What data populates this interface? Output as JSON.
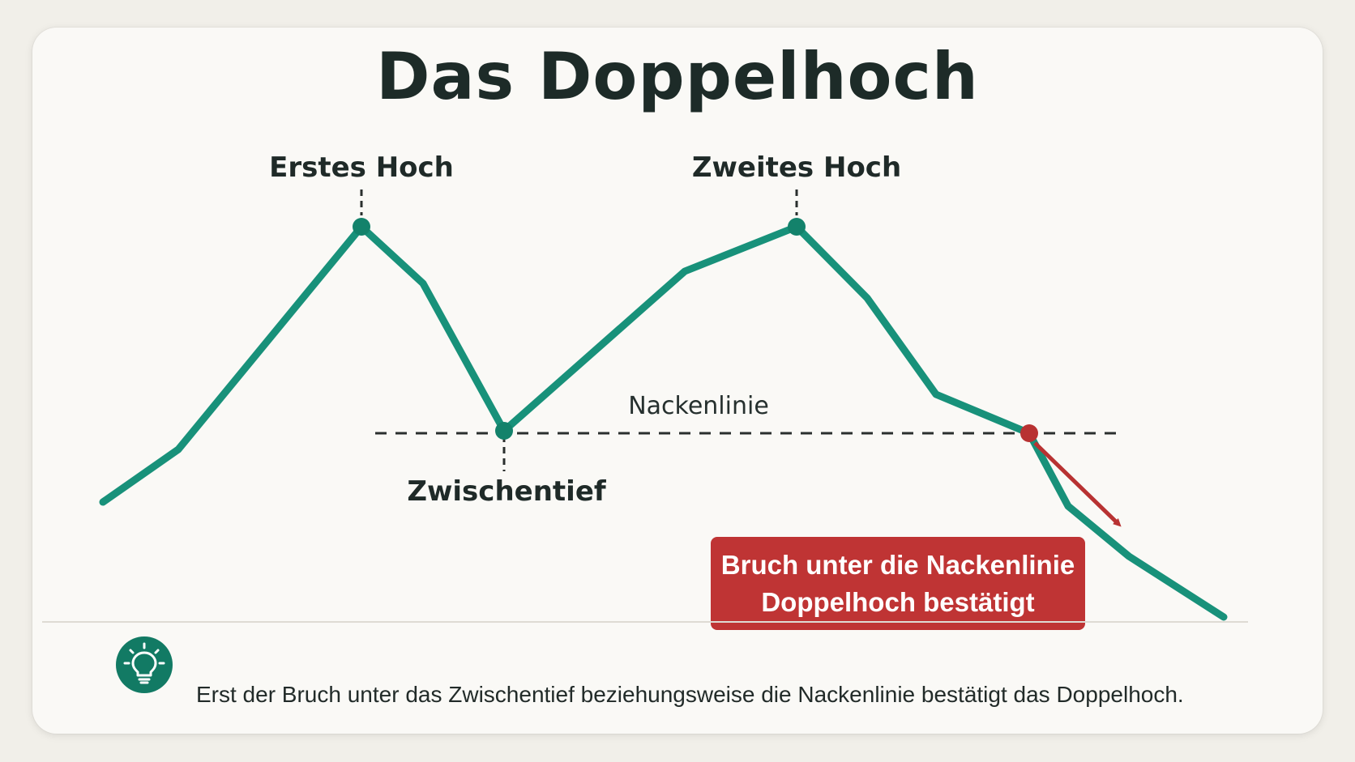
{
  "title": "Das Doppelhoch",
  "labels": {
    "first_high": "Erstes Hoch",
    "second_high": "Zweites Hoch",
    "intermediate_low": "Zwischentief",
    "neckline": "Nackenlinie"
  },
  "callout": {
    "line1": "Bruch unter die Nackenlinie",
    "line2": "Doppelhoch bestätigt"
  },
  "tip": {
    "icon": "lightbulb-icon",
    "text": "Erst der Bruch unter das Zwischentief beziehungsweise die Nackenlinie bestätigt das Doppelhoch."
  },
  "colors": {
    "price_line": "#18917a",
    "break_point": "#b83232",
    "callout_bg": "#bf3434",
    "icon_bg": "#127a64"
  }
}
